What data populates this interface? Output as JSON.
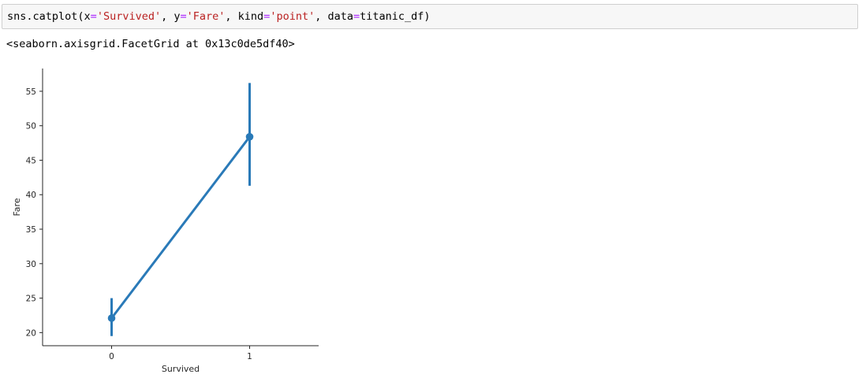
{
  "notebook": {
    "input_code_tokens": [
      {
        "text": "sns.catplot(x",
        "kind": "plain"
      },
      {
        "text": "=",
        "kind": "op"
      },
      {
        "text": "'Survived'",
        "kind": "str"
      },
      {
        "text": ", y",
        "kind": "plain"
      },
      {
        "text": "=",
        "kind": "op"
      },
      {
        "text": "'Fare'",
        "kind": "str"
      },
      {
        "text": ", kind",
        "kind": "plain"
      },
      {
        "text": "=",
        "kind": "op"
      },
      {
        "text": "'point'",
        "kind": "str"
      },
      {
        "text": ", data",
        "kind": "plain"
      },
      {
        "text": "=",
        "kind": "op"
      },
      {
        "text": "titanic_df)",
        "kind": "plain"
      }
    ],
    "output_text": "<seaborn.axisgrid.FacetGrid at 0x13c0de5df40>"
  },
  "colors": {
    "series": "#2a7ab8",
    "axis": "#262626",
    "string": "#ba2121",
    "operator": "#aa22ff"
  },
  "chart_data": {
    "type": "point",
    "title": "",
    "xlabel": "Survived",
    "ylabel": "Fare",
    "categories": [
      "0",
      "1"
    ],
    "values": [
      22.1,
      48.4
    ],
    "ci_low": [
      19.5,
      41.3
    ],
    "ci_high": [
      25.0,
      56.2
    ],
    "yticks": [
      20,
      25,
      30,
      35,
      40,
      45,
      50,
      55
    ],
    "ylim": [
      18.1,
      58.3
    ],
    "grid": false,
    "legend": "none"
  }
}
